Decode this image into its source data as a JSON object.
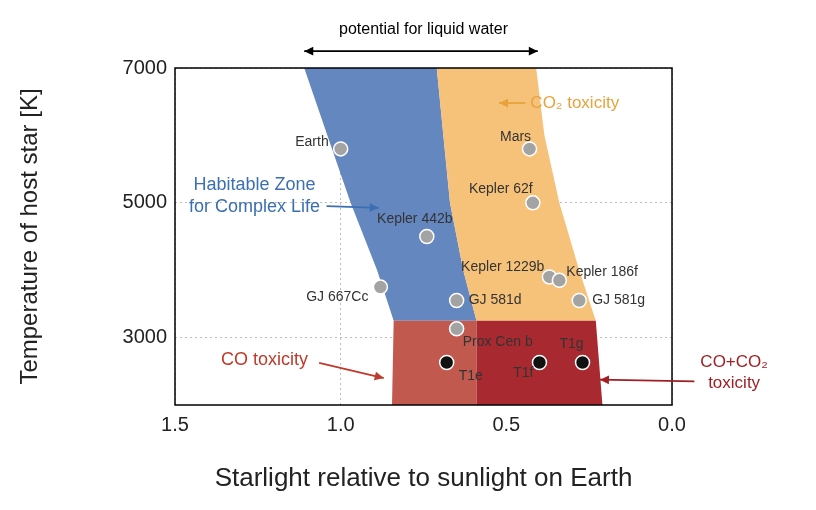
{
  "chart_data": {
    "type": "scatter",
    "x_label": "Starlight relative to sunlight on Earth",
    "y_label": "Temperature of host star [K]",
    "xlim": [
      1.5,
      0
    ],
    "xticks": [
      1.5,
      {
        "value": 1,
        "label": "1.0"
      },
      0.5,
      {
        "value": 0,
        "label": "0.0"
      }
    ],
    "ylim": [
      2000,
      7000
    ],
    "yticks": [
      3000,
      5000,
      7000
    ],
    "grid": true,
    "series": [
      {
        "color": "#a3a3a3",
        "marker": "circle",
        "points": [
          {
            "x": 1.0,
            "y": 5800,
            "label": "Earth"
          },
          {
            "x": 0.43,
            "y": 5800,
            "label": "Mars"
          },
          {
            "x": 0.42,
            "y": 5000,
            "label": "Kepler 62f"
          },
          {
            "x": 0.74,
            "y": 4500,
            "label": "Kepler 442b"
          },
          {
            "x": 0.37,
            "y": 3900,
            "label": "Kepler 1229b"
          },
          {
            "x": 0.34,
            "y": 3850,
            "label": "Kepler 186f"
          },
          {
            "x": 0.88,
            "y": 3750,
            "label": "GJ 667Cc"
          },
          {
            "x": 0.65,
            "y": 3550,
            "label": "GJ 581d"
          },
          {
            "x": 0.28,
            "y": 3550,
            "label": "GJ 581g"
          },
          {
            "x": 0.65,
            "y": 3130,
            "label": "Prox Cen b"
          }
        ]
      },
      {
        "color": "#111111",
        "marker": "circle",
        "points": [
          {
            "x": 0.68,
            "y": 2630,
            "label": "T1e"
          },
          {
            "x": 0.4,
            "y": 2630,
            "label": "T1f"
          },
          {
            "x": 0.27,
            "y": 2630,
            "label": "T1g"
          }
        ]
      }
    ],
    "regions": [
      {
        "color": "#6587c0",
        "polygon": [
          [
            1.11,
            7000
          ],
          [
            1.04,
            6000
          ],
          [
            0.97,
            5000
          ],
          [
            0.89,
            4000
          ],
          [
            0.84,
            3250
          ],
          [
            0.59,
            3250
          ],
          [
            0.63,
            4000
          ],
          [
            0.67,
            5000
          ],
          [
            0.69,
            6000
          ],
          [
            0.71,
            7000
          ]
        ]
      },
      {
        "color": "#f6c27a",
        "polygon": [
          [
            0.71,
            7000
          ],
          [
            0.69,
            6000
          ],
          [
            0.67,
            5000
          ],
          [
            0.63,
            4000
          ],
          [
            0.59,
            3250
          ],
          [
            0.23,
            3250
          ],
          [
            0.28,
            4000
          ],
          [
            0.34,
            5000
          ],
          [
            0.385,
            6000
          ],
          [
            0.41,
            7000
          ]
        ]
      },
      {
        "color": "#c1594f",
        "polygon": [
          [
            0.84,
            3250
          ],
          [
            0.845,
            2000
          ],
          [
            0.59,
            2000
          ],
          [
            0.59,
            3250
          ]
        ]
      },
      {
        "color": "#a82a30",
        "polygon": [
          [
            0.59,
            3250
          ],
          [
            0.59,
            2000
          ],
          [
            0.21,
            2000
          ],
          [
            0.23,
            3250
          ]
        ]
      }
    ],
    "annotations": [
      {
        "lines": [
          "potential for liquid water"
        ],
        "color": "#000000"
      },
      {
        "lines": [
          "Habitable Zone",
          "for Complex Life"
        ],
        "color": "#3c6fb2"
      },
      {
        "lines": [
          "CO₂ toxicity"
        ],
        "color": "#e9a23b"
      },
      {
        "lines": [
          "CO toxicity"
        ],
        "color": "#c0392b"
      },
      {
        "lines": [
          "CO+CO₂",
          "toxicity"
        ],
        "color": "#a01e24"
      }
    ]
  }
}
